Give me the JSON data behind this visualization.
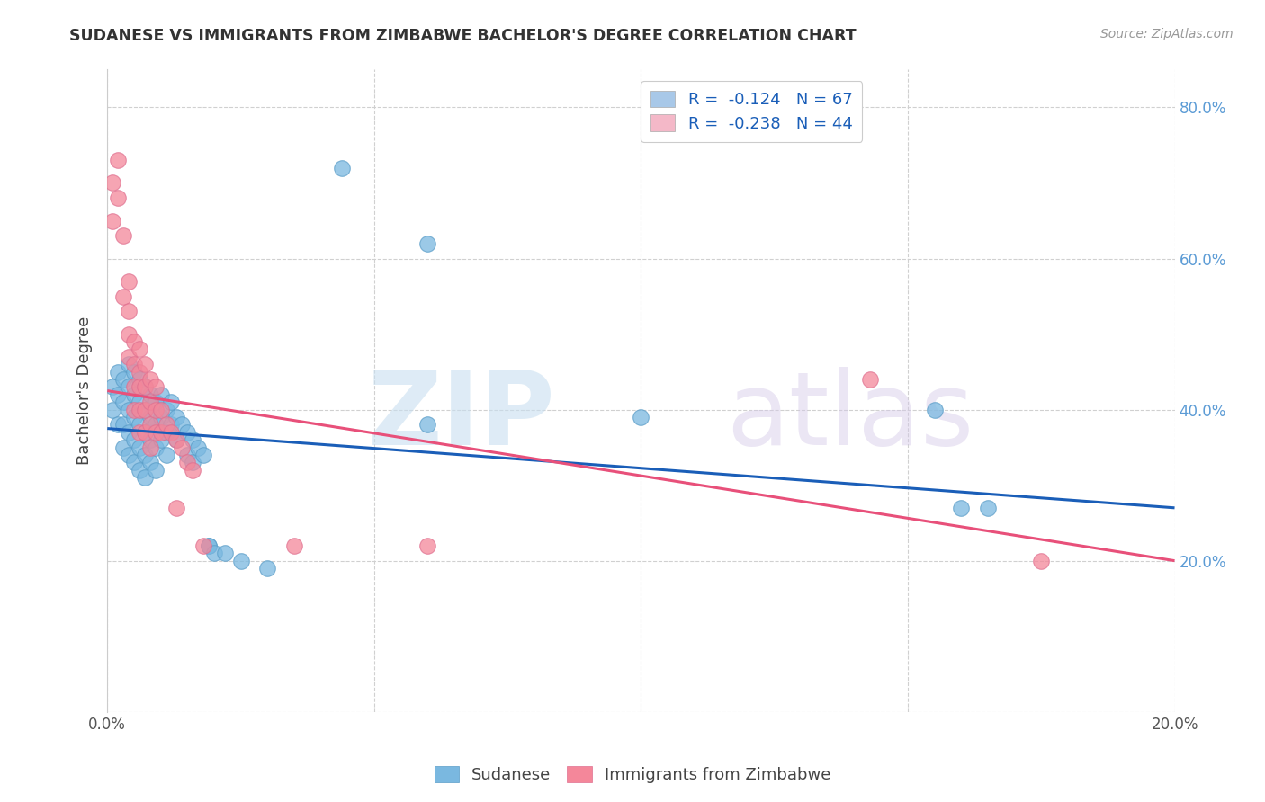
{
  "title": "SUDANESE VS IMMIGRANTS FROM ZIMBABWE BACHELOR'S DEGREE CORRELATION CHART",
  "source": "Source: ZipAtlas.com",
  "ylabel": "Bachelor's Degree",
  "xlim": [
    0.0,
    0.2
  ],
  "ylim": [
    0.0,
    0.85
  ],
  "legend_entries": [
    {
      "label": "R =  -0.124   N = 67",
      "color": "#a8c8e8"
    },
    {
      "label": "R =  -0.238   N = 44",
      "color": "#f4b8c8"
    }
  ],
  "sudanese_color": "#7ab8e0",
  "zimbabwe_color": "#f4879a",
  "sudanese_line_color": "#1a5eb8",
  "zimbabwe_line_color": "#e8507a",
  "sudanese_line": [
    0.0,
    0.375,
    0.2,
    0.27
  ],
  "zimbabwe_line": [
    0.0,
    0.425,
    0.2,
    0.2
  ],
  "sudanese_scatter": [
    [
      0.001,
      0.43
    ],
    [
      0.001,
      0.4
    ],
    [
      0.002,
      0.45
    ],
    [
      0.002,
      0.42
    ],
    [
      0.002,
      0.38
    ],
    [
      0.003,
      0.44
    ],
    [
      0.003,
      0.41
    ],
    [
      0.003,
      0.38
    ],
    [
      0.003,
      0.35
    ],
    [
      0.004,
      0.46
    ],
    [
      0.004,
      0.43
    ],
    [
      0.004,
      0.4
    ],
    [
      0.004,
      0.37
    ],
    [
      0.004,
      0.34
    ],
    [
      0.005,
      0.45
    ],
    [
      0.005,
      0.42
    ],
    [
      0.005,
      0.39
    ],
    [
      0.005,
      0.36
    ],
    [
      0.005,
      0.33
    ],
    [
      0.006,
      0.44
    ],
    [
      0.006,
      0.41
    ],
    [
      0.006,
      0.38
    ],
    [
      0.006,
      0.35
    ],
    [
      0.006,
      0.32
    ],
    [
      0.007,
      0.43
    ],
    [
      0.007,
      0.4
    ],
    [
      0.007,
      0.37
    ],
    [
      0.007,
      0.34
    ],
    [
      0.007,
      0.31
    ],
    [
      0.008,
      0.42
    ],
    [
      0.008,
      0.39
    ],
    [
      0.008,
      0.36
    ],
    [
      0.008,
      0.33
    ],
    [
      0.009,
      0.41
    ],
    [
      0.009,
      0.38
    ],
    [
      0.009,
      0.35
    ],
    [
      0.009,
      0.32
    ],
    [
      0.01,
      0.42
    ],
    [
      0.01,
      0.39
    ],
    [
      0.01,
      0.36
    ],
    [
      0.011,
      0.4
    ],
    [
      0.011,
      0.37
    ],
    [
      0.011,
      0.34
    ],
    [
      0.012,
      0.41
    ],
    [
      0.012,
      0.38
    ],
    [
      0.013,
      0.39
    ],
    [
      0.013,
      0.36
    ],
    [
      0.014,
      0.38
    ],
    [
      0.015,
      0.37
    ],
    [
      0.015,
      0.34
    ],
    [
      0.016,
      0.36
    ],
    [
      0.016,
      0.33
    ],
    [
      0.017,
      0.35
    ],
    [
      0.018,
      0.34
    ],
    [
      0.019,
      0.22
    ],
    [
      0.019,
      0.22
    ],
    [
      0.02,
      0.21
    ],
    [
      0.022,
      0.21
    ],
    [
      0.025,
      0.2
    ],
    [
      0.03,
      0.19
    ],
    [
      0.044,
      0.72
    ],
    [
      0.06,
      0.62
    ],
    [
      0.06,
      0.38
    ],
    [
      0.1,
      0.39
    ],
    [
      0.155,
      0.4
    ],
    [
      0.16,
      0.27
    ],
    [
      0.165,
      0.27
    ]
  ],
  "zimbabwe_scatter": [
    [
      0.001,
      0.7
    ],
    [
      0.001,
      0.65
    ],
    [
      0.002,
      0.73
    ],
    [
      0.002,
      0.68
    ],
    [
      0.003,
      0.63
    ],
    [
      0.003,
      0.55
    ],
    [
      0.004,
      0.53
    ],
    [
      0.004,
      0.5
    ],
    [
      0.004,
      0.47
    ],
    [
      0.004,
      0.57
    ],
    [
      0.005,
      0.49
    ],
    [
      0.005,
      0.46
    ],
    [
      0.005,
      0.43
    ],
    [
      0.005,
      0.4
    ],
    [
      0.006,
      0.48
    ],
    [
      0.006,
      0.45
    ],
    [
      0.006,
      0.43
    ],
    [
      0.006,
      0.4
    ],
    [
      0.006,
      0.37
    ],
    [
      0.007,
      0.46
    ],
    [
      0.007,
      0.43
    ],
    [
      0.007,
      0.4
    ],
    [
      0.007,
      0.37
    ],
    [
      0.008,
      0.44
    ],
    [
      0.008,
      0.41
    ],
    [
      0.008,
      0.38
    ],
    [
      0.008,
      0.35
    ],
    [
      0.009,
      0.43
    ],
    [
      0.009,
      0.4
    ],
    [
      0.009,
      0.37
    ],
    [
      0.01,
      0.4
    ],
    [
      0.01,
      0.37
    ],
    [
      0.011,
      0.38
    ],
    [
      0.012,
      0.37
    ],
    [
      0.013,
      0.36
    ],
    [
      0.013,
      0.27
    ],
    [
      0.014,
      0.35
    ],
    [
      0.015,
      0.33
    ],
    [
      0.016,
      0.32
    ],
    [
      0.018,
      0.22
    ],
    [
      0.035,
      0.22
    ],
    [
      0.06,
      0.22
    ],
    [
      0.143,
      0.44
    ],
    [
      0.175,
      0.2
    ]
  ]
}
